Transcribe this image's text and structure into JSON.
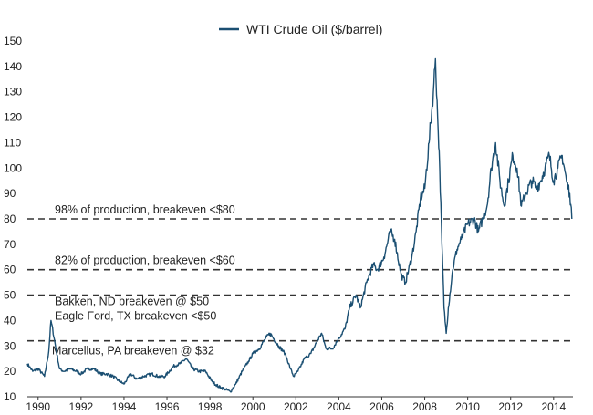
{
  "chart_data": {
    "type": "line",
    "title": "",
    "xlabel": "",
    "ylabel": "",
    "xlim": [
      1989.5,
      2014.9
    ],
    "ylim": [
      10,
      150
    ],
    "grid": false,
    "legend": {
      "position": "top-center",
      "entries": [
        "WTI Crude Oil ($/barrel)"
      ]
    },
    "x_ticks": [
      1990,
      1992,
      1994,
      1996,
      1998,
      2000,
      2002,
      2004,
      2006,
      2008,
      2010,
      2012,
      2014
    ],
    "x_tick_labels": [
      "1990",
      "1992",
      "1994",
      "1996",
      "1998",
      "2000",
      "2002",
      "2004",
      "2006",
      "2008",
      "2010",
      "2012",
      "2014"
    ],
    "y_ticks": [
      10,
      20,
      30,
      40,
      50,
      60,
      70,
      80,
      90,
      100,
      110,
      120,
      130,
      140,
      150
    ],
    "y_tick_labels": [
      "10",
      "20",
      "30",
      "40",
      "50",
      "60",
      "70",
      "80",
      "90",
      "100",
      "110",
      "120",
      "130",
      "140",
      "150"
    ],
    "series": [
      {
        "name": "WTI Crude Oil ($/barrel)",
        "color": "#1b4f72",
        "x": [
          1989.5,
          1989.75,
          1990.0,
          1990.3,
          1990.5,
          1990.6,
          1990.75,
          1990.85,
          1991.0,
          1991.2,
          1991.5,
          1991.8,
          1992.0,
          1992.3,
          1992.6,
          1992.9,
          1993.2,
          1993.5,
          1993.8,
          1994.0,
          1994.3,
          1994.6,
          1994.9,
          1995.3,
          1995.6,
          1995.9,
          1996.3,
          1996.6,
          1996.9,
          1997.2,
          1997.5,
          1997.8,
          1998.1,
          1998.4,
          1998.7,
          1998.95,
          1999.2,
          1999.5,
          1999.8,
          2000.0,
          2000.3,
          2000.6,
          2000.8,
          2001.2,
          2001.5,
          2001.75,
          2001.9,
          2002.1,
          2002.4,
          2002.7,
          2003.0,
          2003.2,
          2003.4,
          2003.7,
          2004.0,
          2004.3,
          2004.5,
          2004.8,
          2005.0,
          2005.3,
          2005.6,
          2005.8,
          2006.1,
          2006.4,
          2006.6,
          2006.9,
          2007.1,
          2007.4,
          2007.6,
          2007.8,
          2008.0,
          2008.2,
          2008.4,
          2008.5,
          2008.6,
          2008.7,
          2008.8,
          2008.9,
          2009.0,
          2009.1,
          2009.3,
          2009.5,
          2009.7,
          2010.0,
          2010.3,
          2010.5,
          2010.7,
          2010.9,
          2011.1,
          2011.3,
          2011.5,
          2011.7,
          2011.9,
          2012.1,
          2012.3,
          2012.5,
          2012.7,
          2013.0,
          2013.2,
          2013.4,
          2013.6,
          2013.8,
          2014.0,
          2014.2,
          2014.4,
          2014.6,
          2014.75,
          2014.85
        ],
        "values": [
          23,
          20,
          21,
          18,
          28,
          40,
          33,
          28,
          21,
          20,
          21,
          20,
          19,
          21,
          21,
          19,
          19,
          18,
          16,
          15,
          19,
          17,
          18,
          19,
          18,
          18,
          22,
          23,
          25,
          21,
          20,
          20,
          16,
          14,
          13,
          12,
          15,
          20,
          24,
          27,
          29,
          33,
          35,
          30,
          27,
          21,
          18,
          20,
          25,
          27,
          32,
          35,
          29,
          29,
          33,
          37,
          45,
          50,
          45,
          55,
          62,
          60,
          65,
          75,
          72,
          58,
          55,
          65,
          75,
          88,
          92,
          110,
          130,
          143,
          120,
          100,
          70,
          45,
          35,
          45,
          60,
          68,
          72,
          78,
          80,
          75,
          80,
          85,
          100,
          110,
          95,
          85,
          95,
          105,
          100,
          85,
          90,
          95,
          92,
          95,
          100,
          105,
          95,
          100,
          105,
          95,
          90,
          80
        ]
      }
    ],
    "reference_lines": [
      {
        "y": 80,
        "label": "98% of production, breakeven <$80"
      },
      {
        "y": 60,
        "label": "82% of production, breakeven <$60"
      },
      {
        "y": 50,
        "label": "Bakken, ND breakeven @ $50",
        "label2": "Eagle Ford, TX breakeven <$50"
      },
      {
        "y": 32,
        "label": "Marcellus, PA breakeven @ $32"
      }
    ]
  }
}
